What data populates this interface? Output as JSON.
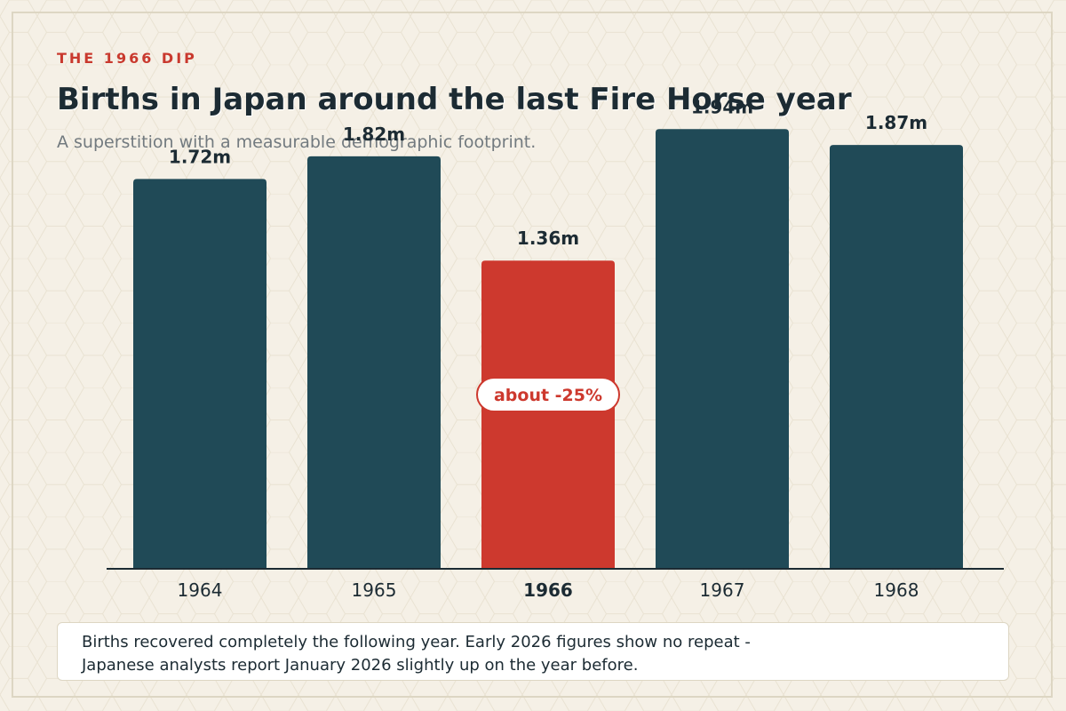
{
  "header": {
    "kicker": "THE 1966 DIP",
    "title": "Births in Japan around the last Fire Horse year",
    "subtitle": "A superstition with a measurable demographic footprint."
  },
  "colors": {
    "background": "#f5f0e6",
    "bar": "#204a57",
    "highlight": "#cd392e",
    "text": "#1c2b33"
  },
  "chart_data": {
    "type": "bar",
    "categories": [
      "1964",
      "1965",
      "1966",
      "1967",
      "1968"
    ],
    "values": [
      1.72,
      1.82,
      1.36,
      1.94,
      1.87
    ],
    "value_labels": [
      "1.72m",
      "1.82m",
      "1.36m",
      "1.94m",
      "1.87m"
    ],
    "unit": "m",
    "highlight_category": "1966",
    "annotation": "about -25%",
    "ylim": [
      0,
      2.0
    ],
    "grid": false,
    "legend": "none"
  },
  "note": {
    "line1": "Births recovered completely the following year. Early 2026 figures show no repeat -",
    "line2": "Japanese analysts report January 2026 slightly up on the year before."
  }
}
